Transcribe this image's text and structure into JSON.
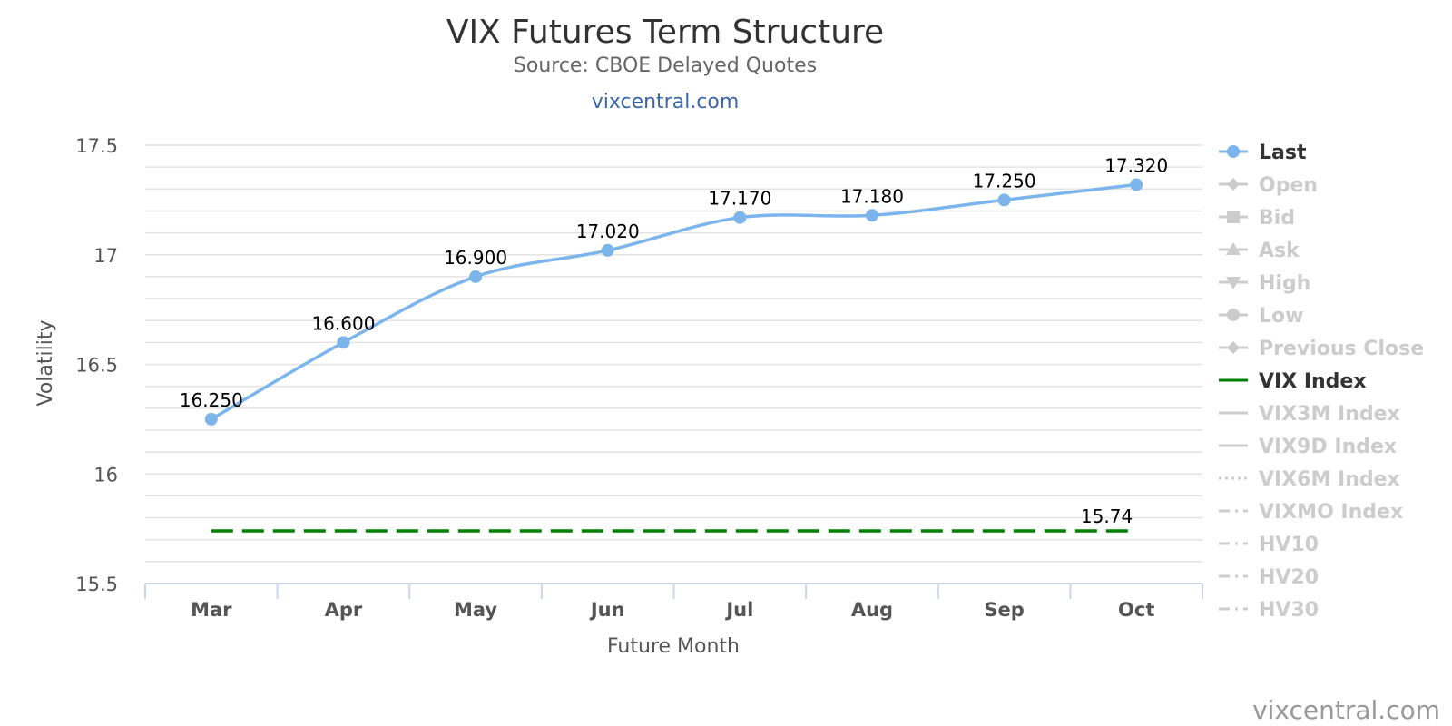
{
  "chart_data": {
    "type": "line",
    "title": "VIX Futures Term Structure",
    "subtitle": "Source: CBOE Delayed Quotes",
    "link_text": "vixcentral.com",
    "credit": "vixcentral.com",
    "xlabel": "Future Month",
    "ylabel": "Volatility",
    "categories": [
      "Mar",
      "Apr",
      "May",
      "Jun",
      "Jul",
      "Aug",
      "Sep",
      "Oct"
    ],
    "ylim": [
      15.5,
      17.5
    ],
    "yticks": [
      "17.5",
      "17",
      "16.5",
      "16",
      "15.5"
    ],
    "grid": true,
    "legend_position": "right",
    "series": [
      {
        "name": "Last",
        "values": [
          16.25,
          16.6,
          16.9,
          17.02,
          17.17,
          17.18,
          17.25,
          17.32
        ],
        "labels": [
          "16.250",
          "16.600",
          "16.900",
          "17.020",
          "17.170",
          "17.180",
          "17.250",
          "17.320"
        ],
        "color": "#7cb5ec",
        "style": "smooth-line-with-markers"
      },
      {
        "name": "VIX Index",
        "values": [
          15.74,
          15.74,
          15.74,
          15.74,
          15.74,
          15.74,
          15.74,
          15.74
        ],
        "end_label": "15.74",
        "color": "#008000",
        "style": "dashed"
      }
    ],
    "legend": [
      {
        "name": "Last",
        "symbol": "circle",
        "line": "solid",
        "color": "#7cb5ec",
        "active": true
      },
      {
        "name": "Open",
        "symbol": "diamond",
        "line": "solid",
        "color": "#cccccc",
        "active": false
      },
      {
        "name": "Bid",
        "symbol": "square",
        "line": "solid",
        "color": "#cccccc",
        "active": false
      },
      {
        "name": "Ask",
        "symbol": "triangle",
        "line": "solid",
        "color": "#cccccc",
        "active": false
      },
      {
        "name": "High",
        "symbol": "triangle-down",
        "line": "solid",
        "color": "#cccccc",
        "active": false
      },
      {
        "name": "Low",
        "symbol": "circle",
        "line": "solid",
        "color": "#cccccc",
        "active": false
      },
      {
        "name": "Previous Close",
        "symbol": "diamond",
        "line": "solid",
        "color": "#cccccc",
        "active": false
      },
      {
        "name": "VIX Index",
        "symbol": "none",
        "line": "solid",
        "color": "#008000",
        "active": true
      },
      {
        "name": "VIX3M Index",
        "symbol": "none",
        "line": "solid",
        "color": "#cccccc",
        "active": false
      },
      {
        "name": "VIX9D Index",
        "symbol": "none",
        "line": "solid",
        "color": "#cccccc",
        "active": false
      },
      {
        "name": "VIX6M Index",
        "symbol": "none",
        "line": "dotted",
        "color": "#cccccc",
        "active": false
      },
      {
        "name": "VIXMO Index",
        "symbol": "none",
        "line": "dashdot",
        "color": "#cccccc",
        "active": false
      },
      {
        "name": "HV10",
        "symbol": "none",
        "line": "dashdot",
        "color": "#cccccc",
        "active": false
      },
      {
        "name": "HV20",
        "symbol": "none",
        "line": "dashdot",
        "color": "#cccccc",
        "active": false
      },
      {
        "name": "HV30",
        "symbol": "none",
        "line": "dashdot",
        "color": "#cccccc",
        "active": false
      }
    ]
  }
}
